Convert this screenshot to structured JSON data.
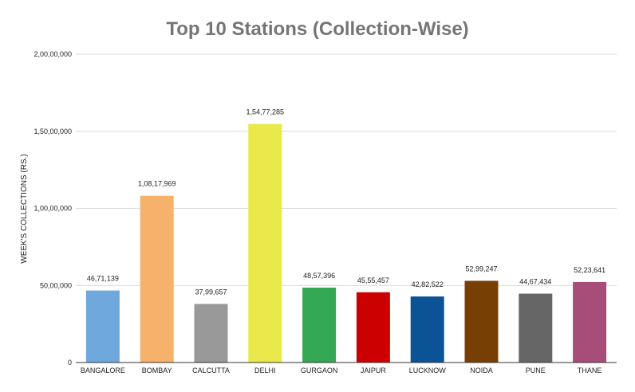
{
  "chart_data": {
    "type": "bar",
    "title": "Top 10 Stations (Collection-Wise)",
    "xlabel": "",
    "ylabel": "WEEK'S COLLECTIONS (RS.)",
    "ylim": [
      0,
      20000000
    ],
    "yticks": [
      0,
      5000000,
      10000000,
      15000000,
      20000000
    ],
    "ytick_labels": [
      "0",
      "50,00,000",
      "1,00,00,000",
      "1,50,00,000",
      "2,00,00,000"
    ],
    "grid": true,
    "legend": "none",
    "categories": [
      "BANGALORE",
      "BOMBAY",
      "CALCUTTA",
      "DELHI",
      "GURGAON",
      "JAIPUR",
      "LUCKNOW",
      "NOIDA",
      "PUNE",
      "THANE"
    ],
    "values": [
      4671139,
      10817969,
      3799657,
      15477285,
      4857396,
      4555457,
      4282522,
      5299247,
      4467434,
      5223641
    ],
    "value_labels": [
      "46,71,139",
      "1,08,17,969",
      "37,99,657",
      "1,54,77,285",
      "48,57,396",
      "45,55,457",
      "42,82,522",
      "52,99,247",
      "44,67,434",
      "52,23,641"
    ],
    "colors": [
      "#6fa8dc",
      "#f6b26b",
      "#999999",
      "#e9e94b",
      "#34a853",
      "#cc0000",
      "#0b5394",
      "#783f04",
      "#666666",
      "#a64d79"
    ]
  }
}
